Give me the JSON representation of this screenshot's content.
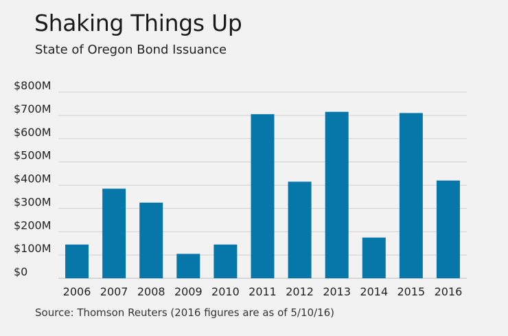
{
  "chart_data": {
    "type": "bar",
    "title": "Shaking Things Up",
    "subtitle": "State of Oregon Bond Issuance",
    "source": "Source: Thomson Reuters (2016 figures are as of 5/10/16)",
    "categories": [
      "2006",
      "2007",
      "2008",
      "2009",
      "2010",
      "2011",
      "2012",
      "2013",
      "2014",
      "2015",
      "2016"
    ],
    "values": [
      145,
      385,
      325,
      105,
      145,
      705,
      415,
      715,
      175,
      710,
      420
    ],
    "unit": "$M",
    "ylim": [
      0,
      800
    ],
    "yticks": [
      "$0",
      "$100M",
      "$200M",
      "$300M",
      "$400M",
      "$500M",
      "$600M",
      "$700M",
      "$800M"
    ],
    "grid": true,
    "bar_color": "#0677a8",
    "grid_color": "#cfd2d2"
  }
}
